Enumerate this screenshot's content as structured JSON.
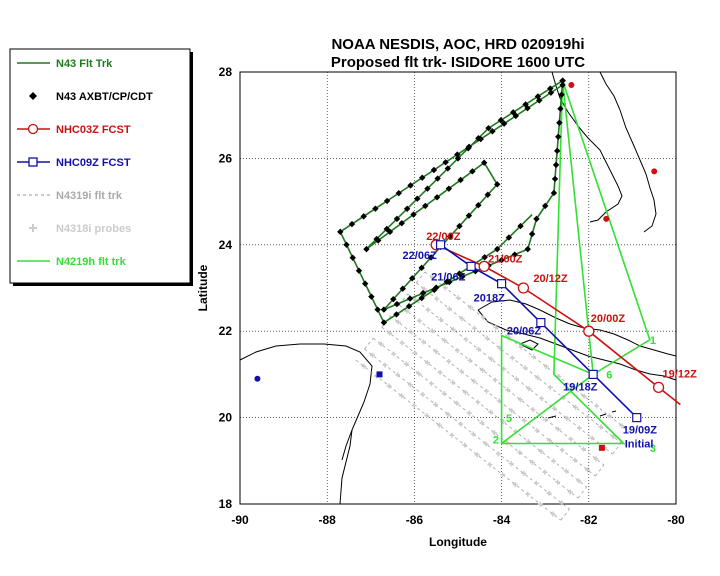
{
  "title_line1": "NOAA NESDIS, AOC, HRD 020919hi",
  "title_line2": "Proposed flt trk- ISIDORE 1600 UTC",
  "xlabel": "Longitude",
  "ylabel": "Latitude",
  "xlim": [
    -90,
    -80
  ],
  "ylim": [
    18,
    28
  ],
  "xticks": [
    "-90",
    "-88",
    "-86",
    "-84",
    "-82",
    "-80"
  ],
  "yticks": [
    "18",
    "20",
    "22",
    "24",
    "26",
    "28"
  ],
  "colors": {
    "n43": "#1e7a1e",
    "nhc03": "#cc1111",
    "nhc09": "#1111aa",
    "n4319": "#aaaaaa",
    "n4219": "#33e033",
    "land": "#000000"
  },
  "legend": [
    {
      "label": "N43 Flt Trk",
      "color": "#1e7a1e",
      "style": "line"
    },
    {
      "label": "N43 AXBT/CP/CDT",
      "color": "#000000",
      "style": "diamond"
    },
    {
      "label": "NHC03Z FCST",
      "color": "#cc1111",
      "style": "circle"
    },
    {
      "label": "NHC09Z FCST",
      "color": "#1111aa",
      "style": "square"
    },
    {
      "label": "N4319i flt  trk",
      "color": "#aaaaaa",
      "style": "dash"
    },
    {
      "label": "N4318i probes",
      "color": "#cccccc",
      "style": "probe"
    },
    {
      "label": "N4219h flt trk",
      "color": "#33e033",
      "style": "line"
    }
  ],
  "chart_data": {
    "type": "map",
    "n43_track": [
      [
        -82.6,
        27.8
      ],
      [
        -84.3,
        26.7
      ],
      [
        -87.1,
        23.9
      ],
      [
        -84.4,
        25.9
      ],
      [
        -84.1,
        25.4
      ],
      [
        -86.7,
        22.5
      ],
      [
        -83.4,
        23.9
      ],
      [
        -83.2,
        24.6
      ],
      [
        -82.8,
        25.2
      ],
      [
        -82.6,
        27.8
      ],
      [
        -82.6,
        27.7
      ],
      [
        -87.7,
        24.3
      ],
      [
        -86.7,
        22.2
      ],
      [
        -84.1,
        23.9
      ],
      [
        -83.3,
        24.7
      ]
    ],
    "nhc03": {
      "points": [
        [
          -80.4,
          20.7
        ],
        [
          -82.0,
          22.0
        ],
        [
          -83.5,
          23.0
        ],
        [
          -84.4,
          23.5
        ],
        [
          -85.5,
          24.0
        ]
      ],
      "labels": [
        "19/12Z",
        "20/00Z",
        "20/12Z",
        "21/00Z",
        "22/00Z"
      ]
    },
    "nhc09": {
      "points": [
        [
          -80.9,
          20.0
        ],
        [
          -81.9,
          21.0
        ],
        [
          -83.1,
          22.2
        ],
        [
          -84.0,
          23.1
        ],
        [
          -84.7,
          23.5
        ],
        [
          -85.4,
          24.0
        ]
      ],
      "labels": [
        "19/09Z",
        "19/18Z",
        "20/06Z",
        "2018Z",
        "21/06Z",
        "22/06Z"
      ]
    },
    "nhc09_initial_label": "Initial",
    "n4219": {
      "points": [
        [
          -82.6,
          27.8
        ],
        [
          -82.8,
          21.0
        ],
        [
          -81.2,
          19.4
        ],
        [
          -84.0,
          19.4
        ],
        [
          -84.0,
          21.9
        ],
        [
          -81.9,
          21.0
        ],
        [
          -80.6,
          21.8
        ],
        [
          -82.6,
          27.8
        ],
        [
          -81.9,
          21.0
        ],
        [
          -84.0,
          19.4
        ]
      ],
      "waypoints": [
        {
          "label": "1",
          "lon": -80.6,
          "lat": 21.7
        },
        {
          "label": "2",
          "lon": -84.2,
          "lat": 19.4
        },
        {
          "label": "3",
          "lon": -80.6,
          "lat": 19.2
        },
        {
          "label": "5",
          "lon": -83.9,
          "lat": 19.9
        },
        {
          "label": "6",
          "lon": -81.6,
          "lat": 20.9
        }
      ]
    },
    "n4319_grid_center": [
      -84.2,
      20.5
    ],
    "markers": [
      {
        "lon": -82.4,
        "lat": 27.7,
        "color": "#cc1111",
        "shape": "dot"
      },
      {
        "lon": -80.5,
        "lat": 25.7,
        "color": "#cc1111",
        "shape": "dot"
      },
      {
        "lon": -81.6,
        "lat": 24.6,
        "color": "#cc1111",
        "shape": "dot"
      },
      {
        "lon": -81.7,
        "lat": 19.3,
        "color": "#cc1111",
        "shape": "square"
      },
      {
        "lon": -89.6,
        "lat": 20.9,
        "color": "#1111aa",
        "shape": "dot"
      },
      {
        "lon": -86.8,
        "lat": 21.0,
        "color": "#1111aa",
        "shape": "square"
      }
    ],
    "grid": true
  }
}
